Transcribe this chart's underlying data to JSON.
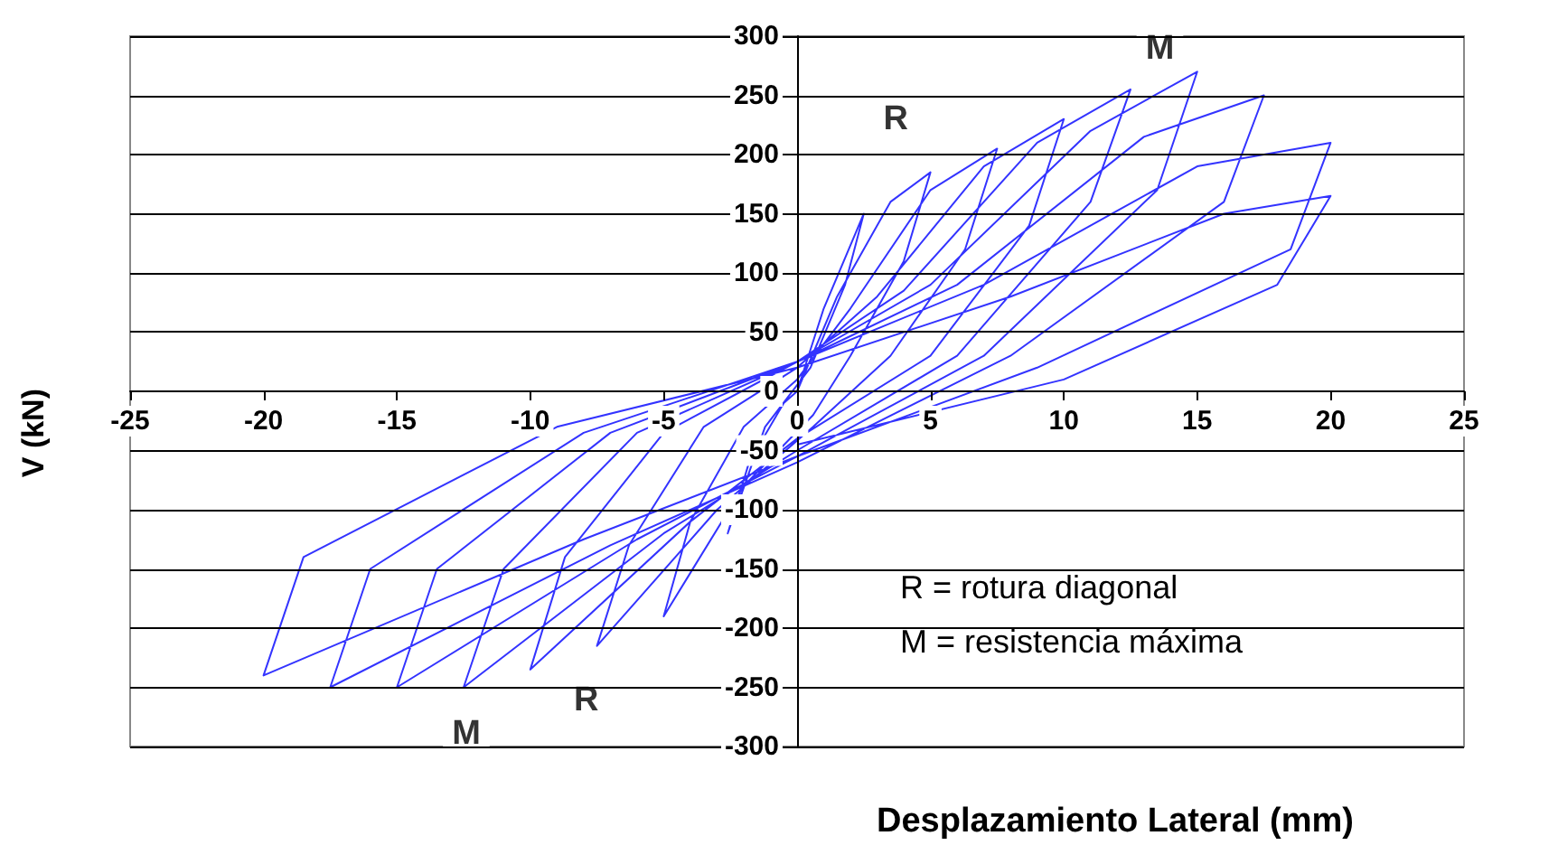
{
  "chart_data": {
    "type": "line",
    "xlabel": "Desplazamiento Lateral (mm)",
    "ylabel": "V (kN)",
    "xlim": [
      -25,
      25
    ],
    "xticks": [
      -25,
      -20,
      -15,
      -10,
      -5,
      0,
      5,
      10,
      15,
      20,
      25
    ],
    "ylim": [
      -300,
      300
    ],
    "yticks": [
      -300,
      -250,
      -200,
      -150,
      -100,
      -50,
      0,
      50,
      100,
      150,
      200,
      250,
      300
    ],
    "grid": "y",
    "marker": "none",
    "line_style": "solid",
    "series": [
      {
        "color": "#3333ff",
        "x": [
          0,
          1,
          2.5,
          1.8,
          0.5,
          -1.2,
          -2.6,
          -1.8,
          -0.5,
          0,
          1.5,
          3.5,
          5,
          4,
          2,
          0.6,
          -2,
          -5,
          -4,
          -2,
          0,
          2,
          5,
          7.5,
          6.3,
          3.5,
          0.6,
          -3,
          -7.5,
          -6.3,
          -3.5,
          0,
          3,
          7,
          10,
          8.7,
          5,
          0,
          -4,
          -10,
          -8.7,
          -5,
          0,
          4,
          9,
          12.5,
          11,
          6,
          0,
          -5,
          -12.5,
          -11,
          -6,
          0,
          5,
          11,
          15,
          13.5,
          7,
          0,
          -6,
          -15,
          -13.5,
          -7,
          0,
          6,
          13,
          17.5,
          16,
          8,
          0,
          -7,
          -17.5,
          -16,
          -8,
          0,
          7,
          15,
          20,
          18.5,
          9,
          0,
          -8,
          -20,
          -18.5,
          -9,
          0,
          8,
          16,
          20,
          18,
          10,
          0
        ],
        "values": [
          0,
          70,
          150,
          90,
          20,
          -30,
          -120,
          -60,
          -10,
          0,
          80,
          160,
          185,
          110,
          30,
          -20,
          -80,
          -190,
          -110,
          -30,
          10,
          70,
          170,
          205,
          120,
          30,
          -30,
          -100,
          -215,
          -130,
          -30,
          20,
          80,
          190,
          230,
          140,
          30,
          -40,
          -110,
          -235,
          -140,
          -35,
          25,
          85,
          210,
          255,
          160,
          30,
          -50,
          -120,
          -250,
          -150,
          -35,
          25,
          90,
          220,
          270,
          170,
          30,
          -55,
          -125,
          -250,
          -150,
          -35,
          25,
          90,
          215,
          250,
          160,
          30,
          -60,
          -130,
          -250,
          -150,
          -35,
          25,
          90,
          190,
          210,
          120,
          20,
          -55,
          -125,
          -240,
          -140,
          -30,
          20,
          80,
          150,
          165,
          90,
          10,
          -45
        ]
      }
    ],
    "annotations": [
      {
        "text": "R",
        "x": 3.7,
        "y": 230
      },
      {
        "text": "M",
        "x": 13.6,
        "y": 289
      },
      {
        "text": "R",
        "x": -7.9,
        "y": -261
      },
      {
        "text": "M",
        "x": -12.4,
        "y": -289
      },
      "R = rotura diagonal",
      "M = resistencia máxima"
    ]
  }
}
